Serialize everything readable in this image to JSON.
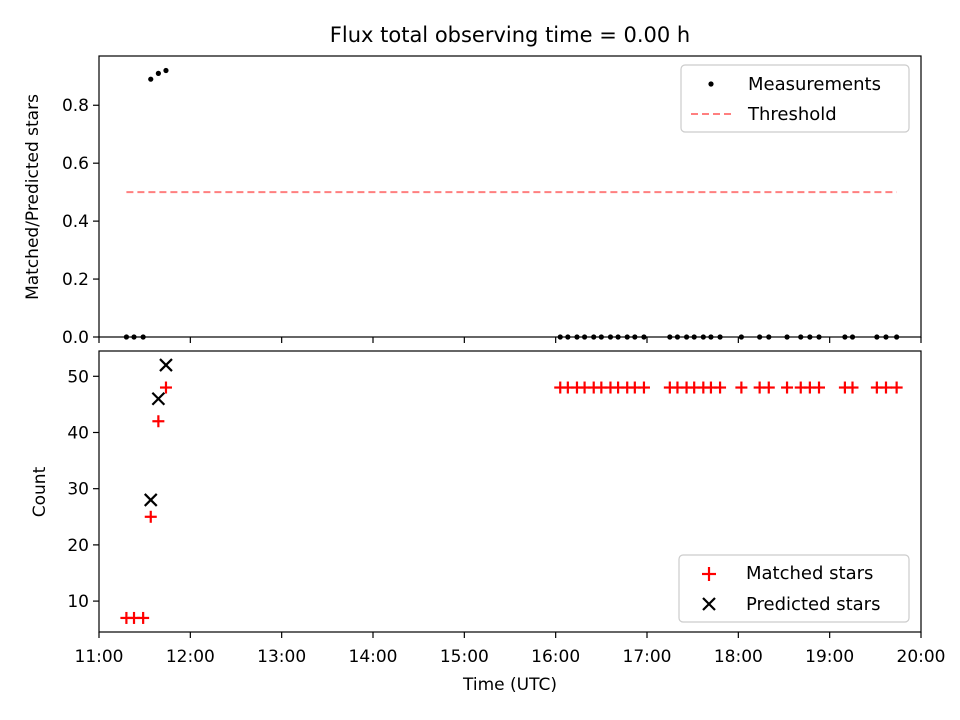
{
  "chart_data": [
    {
      "type": "scatter",
      "title": "Flux total observing time = 0.00 h",
      "xlabel": "",
      "ylabel": "Matched/Predicted stars",
      "xlim": [
        "11:00",
        "20:00"
      ],
      "ylim": [
        0,
        0.97
      ],
      "yticks": [
        0.0,
        0.2,
        0.4,
        0.6,
        0.8
      ],
      "ytick_labels": [
        "0.0",
        "0.2",
        "0.4",
        "0.6",
        "0.8"
      ],
      "legend_position": "top-right",
      "series": [
        {
          "name": "Measurements",
          "kind": "scatter",
          "marker": "dot",
          "color": "#000000",
          "points": [
            {
              "x": "11:18",
              "y": 0
            },
            {
              "x": "11:23",
              "y": 0
            },
            {
              "x": "11:29",
              "y": 0
            },
            {
              "x": "11:34",
              "y": 0.89
            },
            {
              "x": "11:39",
              "y": 0.91
            },
            {
              "x": "11:44",
              "y": 0.92
            },
            {
              "x": "16:03",
              "y": 0
            },
            {
              "x": "16:08",
              "y": 0
            },
            {
              "x": "16:14",
              "y": 0
            },
            {
              "x": "16:19",
              "y": 0
            },
            {
              "x": "16:25",
              "y": 0
            },
            {
              "x": "16:30",
              "y": 0
            },
            {
              "x": "16:36",
              "y": 0
            },
            {
              "x": "16:41",
              "y": 0
            },
            {
              "x": "16:47",
              "y": 0
            },
            {
              "x": "16:52",
              "y": 0
            },
            {
              "x": "16:58",
              "y": 0
            },
            {
              "x": "17:15",
              "y": 0
            },
            {
              "x": "17:20",
              "y": 0
            },
            {
              "x": "17:26",
              "y": 0
            },
            {
              "x": "17:31",
              "y": 0
            },
            {
              "x": "17:37",
              "y": 0
            },
            {
              "x": "17:42",
              "y": 0
            },
            {
              "x": "17:48",
              "y": 0
            },
            {
              "x": "18:02",
              "y": 0
            },
            {
              "x": "18:14",
              "y": 0
            },
            {
              "x": "18:20",
              "y": 0
            },
            {
              "x": "18:32",
              "y": 0
            },
            {
              "x": "18:41",
              "y": 0
            },
            {
              "x": "18:47",
              "y": 0
            },
            {
              "x": "18:53",
              "y": 0
            },
            {
              "x": "19:10",
              "y": 0
            },
            {
              "x": "19:15",
              "y": 0
            },
            {
              "x": "19:31",
              "y": 0
            },
            {
              "x": "19:37",
              "y": 0
            },
            {
              "x": "19:44",
              "y": 0
            }
          ]
        },
        {
          "name": "Threshold",
          "kind": "line",
          "style": "dashed",
          "color": "#ff7f7f",
          "points": [
            {
              "x": "11:18",
              "y": 0.5
            },
            {
              "x": "19:44",
              "y": 0.5
            }
          ]
        }
      ]
    },
    {
      "type": "scatter",
      "title": "",
      "xlabel": "Time (UTC)",
      "ylabel": "Count",
      "xlim": [
        "11:00",
        "20:00"
      ],
      "ylim": [
        4.5,
        54.5
      ],
      "yticks": [
        10,
        20,
        30,
        40,
        50
      ],
      "ytick_labels": [
        "10",
        "20",
        "30",
        "40",
        "50"
      ],
      "xticks": [
        "11:00",
        "12:00",
        "13:00",
        "14:00",
        "15:00",
        "16:00",
        "17:00",
        "18:00",
        "19:00",
        "20:00"
      ],
      "legend_position": "lower-right",
      "series": [
        {
          "name": "Matched stars",
          "kind": "scatter",
          "marker": "plus",
          "color": "#ff0000",
          "points": [
            {
              "x": "11:18",
              "y": 7
            },
            {
              "x": "11:23",
              "y": 7
            },
            {
              "x": "11:29",
              "y": 7
            },
            {
              "x": "11:34",
              "y": 25
            },
            {
              "x": "11:39",
              "y": 42
            },
            {
              "x": "11:44",
              "y": 48
            },
            {
              "x": "16:03",
              "y": 48
            },
            {
              "x": "16:08",
              "y": 48
            },
            {
              "x": "16:14",
              "y": 48
            },
            {
              "x": "16:19",
              "y": 48
            },
            {
              "x": "16:25",
              "y": 48
            },
            {
              "x": "16:30",
              "y": 48
            },
            {
              "x": "16:36",
              "y": 48
            },
            {
              "x": "16:41",
              "y": 48
            },
            {
              "x": "16:47",
              "y": 48
            },
            {
              "x": "16:52",
              "y": 48
            },
            {
              "x": "16:58",
              "y": 48
            },
            {
              "x": "17:15",
              "y": 48
            },
            {
              "x": "17:20",
              "y": 48
            },
            {
              "x": "17:26",
              "y": 48
            },
            {
              "x": "17:31",
              "y": 48
            },
            {
              "x": "17:37",
              "y": 48
            },
            {
              "x": "17:42",
              "y": 48
            },
            {
              "x": "17:48",
              "y": 48
            },
            {
              "x": "18:02",
              "y": 48
            },
            {
              "x": "18:14",
              "y": 48
            },
            {
              "x": "18:20",
              "y": 48
            },
            {
              "x": "18:32",
              "y": 48
            },
            {
              "x": "18:41",
              "y": 48
            },
            {
              "x": "18:47",
              "y": 48
            },
            {
              "x": "18:53",
              "y": 48
            },
            {
              "x": "19:10",
              "y": 48
            },
            {
              "x": "19:15",
              "y": 48
            },
            {
              "x": "19:31",
              "y": 48
            },
            {
              "x": "19:37",
              "y": 48
            },
            {
              "x": "19:44",
              "y": 48
            }
          ]
        },
        {
          "name": "Predicted stars",
          "kind": "scatter",
          "marker": "x",
          "color": "#000000",
          "points": [
            {
              "x": "11:34",
              "y": 28
            },
            {
              "x": "11:39",
              "y": 46
            },
            {
              "x": "11:44",
              "y": 52
            }
          ]
        }
      ]
    }
  ]
}
